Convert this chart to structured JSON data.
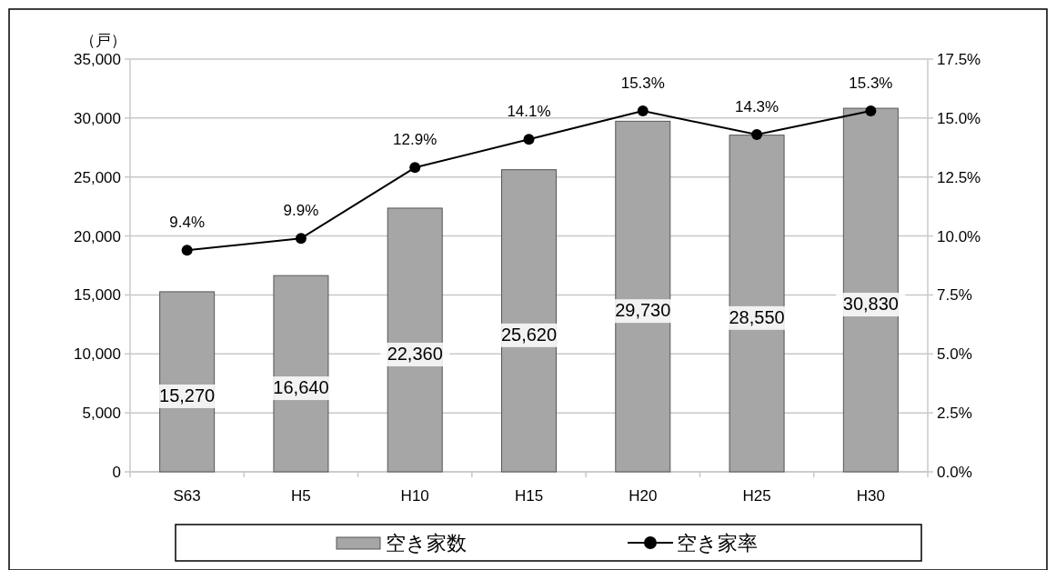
{
  "chart_data": {
    "type": "bar",
    "ylabel": "（戸）",
    "categories": [
      "S63",
      "H5",
      "H10",
      "H15",
      "H20",
      "H25",
      "H30"
    ],
    "series": [
      {
        "name": "空き家数",
        "color": "#a6a6a6",
        "values": [
          15270,
          16640,
          22360,
          25620,
          29730,
          28550,
          30830
        ],
        "value_labels": [
          "15,270",
          "16,640",
          "22,360",
          "25,620",
          "29,730",
          "28,550",
          "30,830"
        ]
      },
      {
        "name": "空き家率",
        "type": "line",
        "axis": "y2",
        "color": "#000000",
        "marker": "circle",
        "values": [
          9.4,
          9.9,
          12.9,
          14.1,
          15.3,
          14.3,
          15.3
        ],
        "value_labels": [
          "9.4%",
          "9.9%",
          "12.9%",
          "14.1%",
          "15.3%",
          "14.3%",
          "15.3%"
        ]
      }
    ],
    "ylim": [
      0,
      35000
    ],
    "yticks": [
      {
        "value": 0,
        "label": "0"
      },
      {
        "value": 5000,
        "label": "5,000"
      },
      {
        "value": 10000,
        "label": "10,000"
      },
      {
        "value": 15000,
        "label": "15,000"
      },
      {
        "value": 20000,
        "label": "20,000"
      },
      {
        "value": 25000,
        "label": "25,000"
      },
      {
        "value": 30000,
        "label": "30,000"
      },
      {
        "value": 35000,
        "label": "35,000"
      }
    ],
    "y2lim": [
      0,
      17.5
    ],
    "y2ticks": [
      {
        "value": 0,
        "label": "0.0%"
      },
      {
        "value": 2.5,
        "label": "2.5%"
      },
      {
        "value": 5,
        "label": "5.0%"
      },
      {
        "value": 7.5,
        "label": "7.5%"
      },
      {
        "value": 10,
        "label": "10.0%"
      },
      {
        "value": 12.5,
        "label": "12.5%"
      },
      {
        "value": 15,
        "label": "15.0%"
      },
      {
        "value": 17.5,
        "label": "17.5%"
      }
    ],
    "grid": "y",
    "legend": "bottom"
  }
}
